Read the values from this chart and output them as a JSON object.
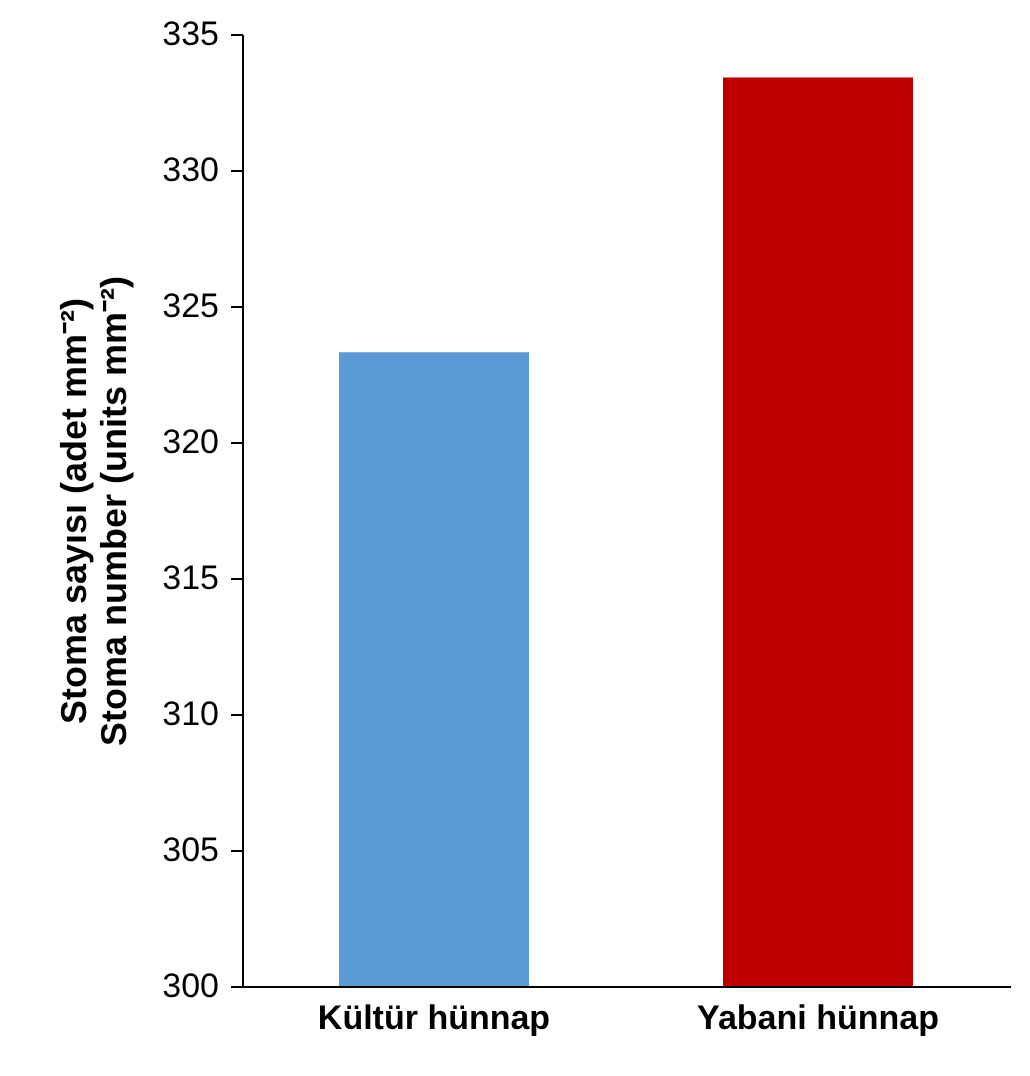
{
  "chart_data": {
    "type": "bar",
    "ylabel": "Stoma sayısı (adet mm⁻²)\nStoma number (units mm⁻²)",
    "categories": [
      "Kültür hünnap",
      "Yabani hünnap"
    ],
    "values": [
      323.3,
      333.4
    ],
    "colors": [
      "#5b9bd5",
      "#c00000"
    ],
    "ylim": [
      300,
      335
    ],
    "yticks": [
      300,
      305,
      310,
      315,
      320,
      325,
      330,
      335
    ],
    "grid": false
  }
}
